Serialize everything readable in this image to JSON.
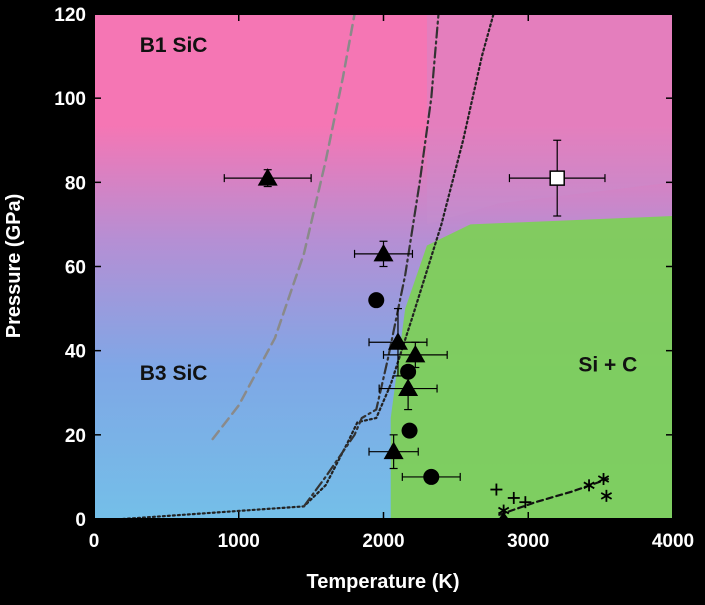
{
  "chart_data": {
    "type": "scatter",
    "xlabel": "Temperature (K)",
    "ylabel": "Pressure (GPa)",
    "xlim": [
      0,
      4000
    ],
    "ylim": [
      0,
      120
    ],
    "x_ticks": [
      "0",
      "1000",
      "2000",
      "3000",
      "4000"
    ],
    "y_ticks": [
      "0",
      "20",
      "40",
      "60",
      "80",
      "100",
      "120"
    ],
    "x_tick_values": [
      0,
      1000,
      2000,
      3000,
      4000
    ],
    "y_tick_values": [
      0,
      20,
      40,
      60,
      80,
      100,
      120
    ],
    "region_labels": [
      {
        "text": "B1 SiC",
        "x": 550,
        "y": 111
      },
      {
        "text": "B3 SiC",
        "x": 550,
        "y": 33
      },
      {
        "text": "Si + C",
        "x": 3550,
        "y": 35
      }
    ],
    "colors": {
      "b1_region": "#f576b4",
      "b3_region": "#7fa7e6",
      "b3_light": "#74bfe8",
      "sic_region": "#7ecf5a",
      "markers": "#000000",
      "open_square": "#ffffff"
    },
    "triangles": [
      {
        "x": 1200,
        "y": 81,
        "xerr": 300,
        "yerr": 2
      },
      {
        "x": 2000,
        "y": 63,
        "xerr": 200,
        "yerr": 3
      },
      {
        "x": 2100,
        "y": 42,
        "xerr": 200,
        "yerr": 8
      },
      {
        "x": 2220,
        "y": 39,
        "xerr": 220,
        "yerr": 3
      },
      {
        "x": 2170,
        "y": 31,
        "xerr": 200,
        "yerr": 5
      },
      {
        "x": 2070,
        "y": 16,
        "xerr": 170,
        "yerr": 4
      }
    ],
    "circles": [
      {
        "x": 1950,
        "y": 52
      },
      {
        "x": 2170,
        "y": 35
      },
      {
        "x": 2180,
        "y": 21
      },
      {
        "x": 2330,
        "y": 10,
        "xerr": 200
      }
    ],
    "open_square": {
      "x": 3200,
      "y": 81,
      "xerr": 330,
      "yerr": 9
    },
    "plus_markers": [
      {
        "x": 2780,
        "y": 7
      },
      {
        "x": 2900,
        "y": 5
      },
      {
        "x": 2980,
        "y": 4
      }
    ],
    "star_markers": [
      {
        "x": 2830,
        "y": 2
      },
      {
        "x": 3420,
        "y": 8
      },
      {
        "x": 3520,
        "y": 9.5
      },
      {
        "x": 3540,
        "y": 5.5
      }
    ],
    "diamond_marker": {
      "x": 2830,
      "y": 0
    },
    "curves": [
      {
        "style": "dashed",
        "color": "#8a8a8a",
        "points": [
          [
            820,
            19
          ],
          [
            1000,
            27
          ],
          [
            1250,
            43
          ],
          [
            1450,
            63
          ],
          [
            1600,
            85
          ],
          [
            1720,
            105
          ],
          [
            1800,
            120
          ]
        ]
      },
      {
        "style": "dotted",
        "color": "#222222",
        "points": [
          [
            200,
            0
          ],
          [
            1450,
            3
          ],
          [
            1600,
            8
          ],
          [
            1750,
            18
          ],
          [
            1820,
            23
          ],
          [
            1950,
            24
          ],
          [
            2050,
            32
          ],
          [
            2200,
            48
          ],
          [
            2400,
            70
          ],
          [
            2550,
            90
          ],
          [
            2680,
            110
          ],
          [
            2760,
            120
          ]
        ]
      },
      {
        "style": "dashdot",
        "color": "#333333",
        "points": [
          [
            1450,
            3
          ],
          [
            1600,
            10
          ],
          [
            1800,
            20
          ],
          [
            1850,
            24
          ],
          [
            1950,
            26
          ],
          [
            2030,
            38
          ],
          [
            2150,
            58
          ],
          [
            2250,
            80
          ],
          [
            2330,
            100
          ],
          [
            2380,
            120
          ]
        ]
      },
      {
        "style": "dashed-fine",
        "color": "#111111",
        "points": [
          [
            2800,
            1
          ],
          [
            3050,
            4
          ],
          [
            3300,
            6.5
          ],
          [
            3550,
            9.5
          ]
        ]
      }
    ]
  }
}
